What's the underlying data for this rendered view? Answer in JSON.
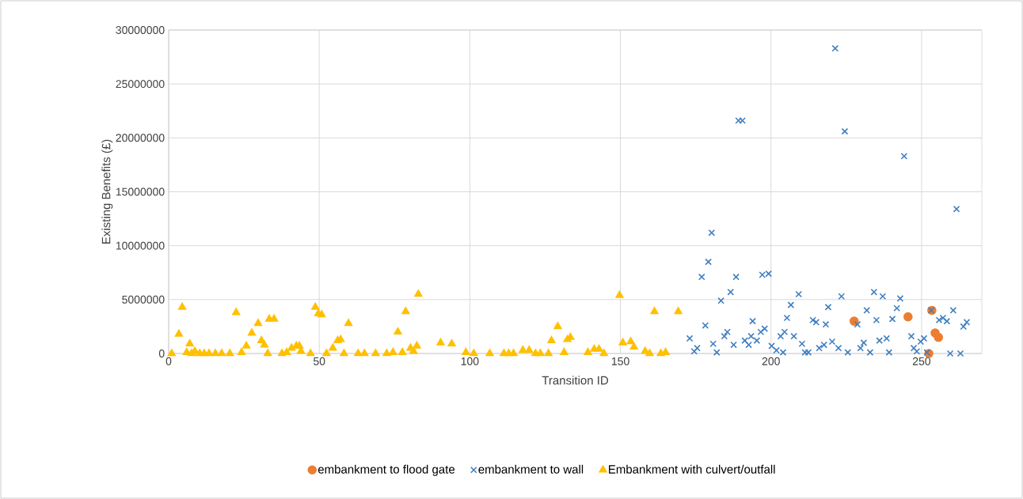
{
  "chart_data": {
    "type": "scatter",
    "xlabel": "Transition ID",
    "ylabel": "Existing Benefits (£)",
    "xlim": [
      0,
      270
    ],
    "ylim": [
      0,
      30000000
    ],
    "xticks": [
      0,
      50,
      100,
      150,
      200,
      250
    ],
    "yticks": [
      0,
      5000000,
      10000000,
      15000000,
      20000000,
      25000000,
      30000000
    ],
    "grid": true,
    "legend": "bottom",
    "series": [
      {
        "name": "embankment to flood gate",
        "color": "#ed7d31",
        "marker": "circle",
        "x": [
          227.6,
          245.5,
          253.4,
          254.5,
          255.6,
          252.4
        ],
        "values": [
          3000000,
          3400000,
          4000000,
          1900000,
          1500000,
          0
        ]
      },
      {
        "name": "embankment to wall",
        "color": "#3f7fc0",
        "marker": "cross",
        "x": [
          173,
          174.5,
          175.5,
          177,
          178.2,
          179.2,
          180.3,
          180.8,
          182,
          183.4,
          184.5,
          185.5,
          186.6,
          187.6,
          188.4,
          189.2,
          190.5,
          191.3,
          192.6,
          193.4,
          193.9,
          195.3,
          196.6,
          197.1,
          197.9,
          199.2,
          200.2,
          201.8,
          203.2,
          204,
          204.5,
          205.3,
          206.6,
          207.6,
          209.2,
          210.3,
          211.3,
          212.4,
          213.9,
          215,
          216,
          217.6,
          218.2,
          219,
          220.3,
          221.3,
          222.4,
          223.4,
          224.5,
          225.5,
          228.7,
          229.7,
          230.8,
          231.8,
          232.9,
          234.2,
          235,
          236,
          237.1,
          238.4,
          239.2,
          240.3,
          241.8,
          242.9,
          244.2,
          246.6,
          247.4,
          248.4,
          249.7,
          250.8,
          251.8,
          253.2,
          255.8,
          257.1,
          258.4,
          259.5,
          260.5,
          261.6,
          262.9,
          263.9,
          265
        ],
        "values": [
          1400000,
          200000,
          500000,
          7100000,
          2600000,
          8500000,
          11200000,
          900000,
          100000,
          4900000,
          1600000,
          2000000,
          5700000,
          800000,
          7100000,
          21600000,
          21600000,
          1200000,
          800000,
          1600000,
          3000000,
          1200000,
          2000000,
          7300000,
          2300000,
          7400000,
          700000,
          300000,
          1600000,
          100000,
          2000000,
          3300000,
          4500000,
          1600000,
          5500000,
          900000,
          100000,
          100000,
          3100000,
          2900000,
          500000,
          800000,
          2700000,
          4300000,
          1100000,
          28300000,
          500000,
          5300000,
          20600000,
          100000,
          2700000,
          500000,
          1000000,
          4000000,
          100000,
          5700000,
          3100000,
          1200000,
          5300000,
          1400000,
          100000,
          3200000,
          4200000,
          5100000,
          18300000,
          1600000,
          500000,
          200000,
          1100000,
          1400000,
          100000,
          4000000,
          3100000,
          3300000,
          3000000,
          0,
          4000000,
          13400000,
          0,
          2500000,
          2900000
        ]
      },
      {
        "name": "Embankment with culvert/outfall",
        "color": "#ffc000",
        "marker": "triangle",
        "x": [
          1,
          3.4,
          4.5,
          6,
          7,
          7.6,
          8.7,
          10.3,
          11.8,
          13.4,
          15.5,
          17.6,
          20.3,
          22.4,
          24.2,
          25.8,
          27.6,
          29.7,
          30.8,
          31.8,
          32.9,
          33.4,
          35,
          37.6,
          39.2,
          40.8,
          42.4,
          43.4,
          43.9,
          47.1,
          48.7,
          49.7,
          50.8,
          52.4,
          54.5,
          56.1,
          57.1,
          58.2,
          59.7,
          62.9,
          65,
          68.7,
          72.4,
          74.5,
          76.1,
          77.6,
          78.7,
          80.3,
          81.3,
          82.4,
          82.9,
          90.3,
          94,
          98.7,
          101.3,
          106.6,
          111.3,
          112.9,
          114.5,
          117.6,
          119.7,
          121.8,
          123.4,
          126.1,
          127.1,
          129.2,
          131.3,
          132.4,
          133.4,
          139.2,
          141.3,
          142.9,
          144.5,
          149.7,
          150.8,
          153.4,
          154.5,
          158.2,
          159.7,
          161.3,
          163.4,
          165,
          169.2
        ],
        "values": [
          0,
          1800000,
          4300000,
          100000,
          900000,
          0,
          200000,
          0,
          0,
          0,
          0,
          0,
          0,
          3800000,
          100000,
          700000,
          1900000,
          2800000,
          1200000,
          800000,
          0,
          3200000,
          3200000,
          0,
          100000,
          500000,
          700000,
          700000,
          200000,
          0,
          4300000,
          3700000,
          3600000,
          0,
          500000,
          1200000,
          1300000,
          0,
          2800000,
          0,
          0,
          0,
          0,
          100000,
          2000000,
          100000,
          3900000,
          500000,
          200000,
          700000,
          5500000,
          1000000,
          900000,
          100000,
          0,
          0,
          0,
          0,
          0,
          300000,
          300000,
          0,
          0,
          0,
          1200000,
          2500000,
          100000,
          1300000,
          1500000,
          100000,
          400000,
          400000,
          0,
          5400000,
          1000000,
          1100000,
          600000,
          200000,
          0,
          3900000,
          0,
          100000,
          3900000
        ]
      }
    ]
  }
}
